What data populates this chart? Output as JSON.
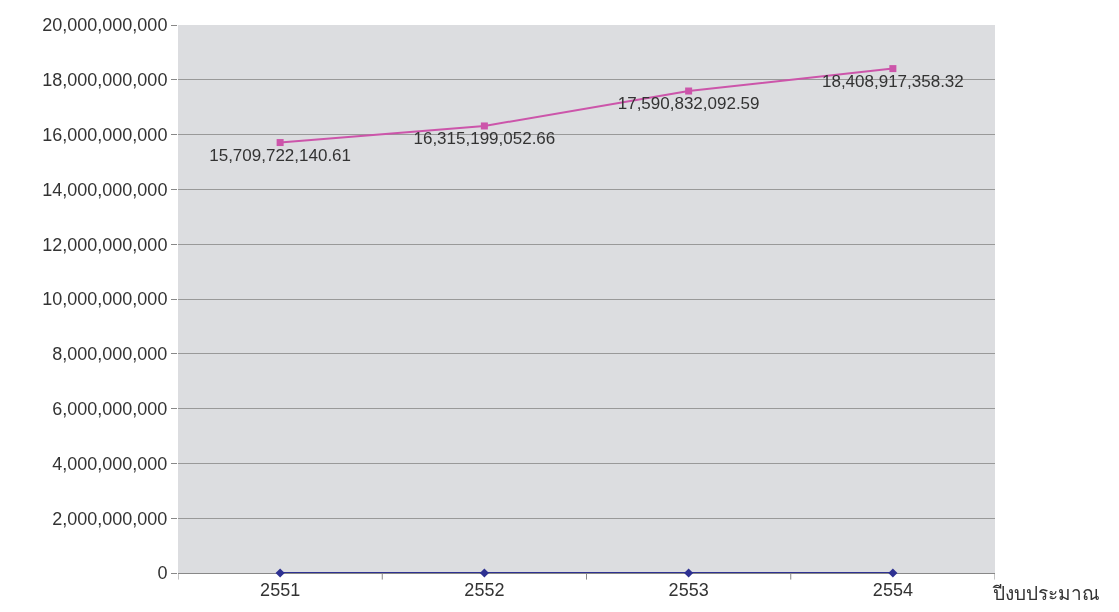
{
  "chart_data": {
    "type": "line",
    "xlabel": "ปีงบประมาณ",
    "categories": [
      "2551",
      "2552",
      "2553",
      "2554"
    ],
    "series": [
      {
        "color": "#cc55aa",
        "marker": "square",
        "values": [
          15709722140.61,
          16315199052.66,
          17590832092.59,
          18408917358.32
        ],
        "value_labels": [
          "15,709,722,140.61",
          "16,315,199,052.66",
          "17,590,832,092.59",
          "18,408,917,358.32"
        ]
      },
      {
        "color": "#2e3192",
        "marker": "diamond",
        "values": [
          0,
          0,
          0,
          0
        ]
      }
    ],
    "ylim": [
      0,
      20000000000
    ],
    "yticks": [
      {
        "value": 0,
        "label": "0"
      },
      {
        "value": 2000000000,
        "label": "2,000,000,000"
      },
      {
        "value": 4000000000,
        "label": "4,000,000,000"
      },
      {
        "value": 6000000000,
        "label": "6,000,000,000"
      },
      {
        "value": 8000000000,
        "label": "8,000,000,000"
      },
      {
        "value": 10000000000,
        "label": "10,000,000,000"
      },
      {
        "value": 12000000000,
        "label": "12,000,000,000"
      },
      {
        "value": 14000000000,
        "label": "14,000,000,000"
      },
      {
        "value": 16000000000,
        "label": "16,000,000,000"
      },
      {
        "value": 18000000000,
        "label": "18,000,000,000"
      },
      {
        "value": 20000000000,
        "label": "20,000,000,000"
      }
    ],
    "grid": "y"
  }
}
